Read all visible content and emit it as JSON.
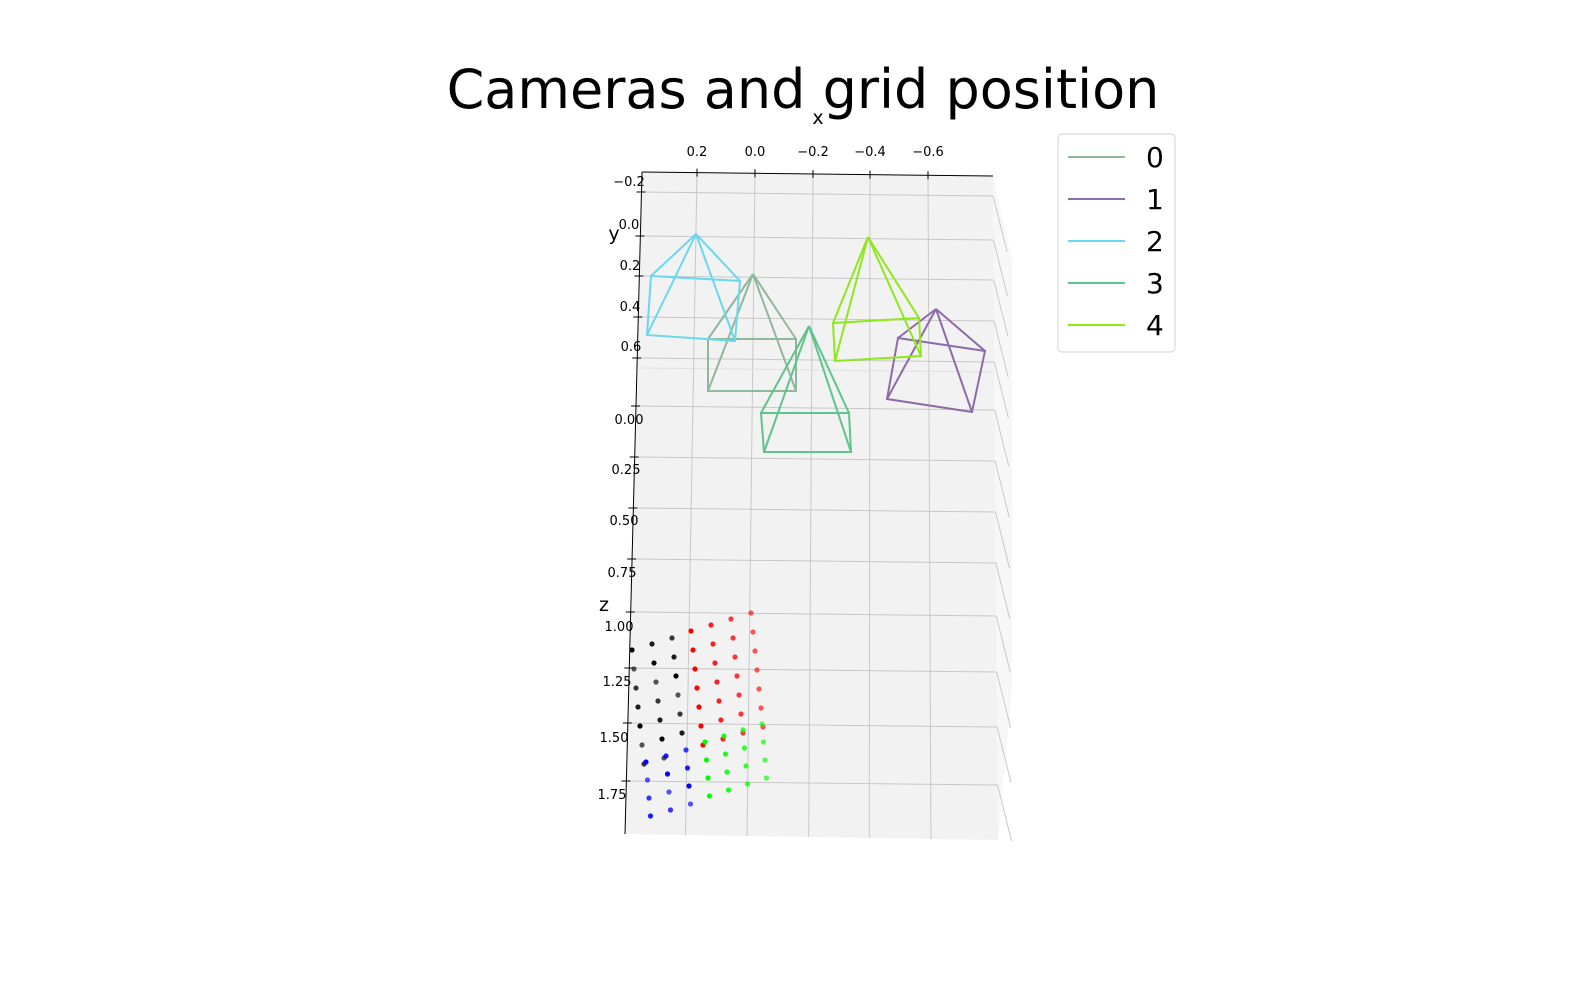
{
  "chart_data": {
    "type": "scatter",
    "projection": "3d",
    "title": "Cameras and grid position",
    "xlabel": "x",
    "ylabel": "y",
    "zlabel": "z",
    "x_ticks": [
      "0.2",
      "0.0",
      "−0.2",
      "−0.4",
      "−0.6"
    ],
    "y_ticks": [
      "−0.2",
      "0.0",
      "0.2",
      "0.4",
      "0.6"
    ],
    "z_ticks": [
      "0.00",
      "0.25",
      "0.50",
      "0.75",
      "1.00",
      "1.25",
      "1.50",
      "1.75"
    ],
    "grid": true,
    "legend_position": "top-right",
    "legend": [
      {
        "label": "0",
        "color": "#8fb89a"
      },
      {
        "label": "1",
        "color": "#8f6aa8"
      },
      {
        "label": "2",
        "color": "#6ad8ec"
      },
      {
        "label": "3",
        "color": "#5ec48a"
      },
      {
        "label": "4",
        "color": "#8ee81c"
      }
    ],
    "grid_point_groups": [
      {
        "color": "#000000",
        "count": 20
      },
      {
        "color": "#ff0000",
        "count": 28
      },
      {
        "color": "#0000ff",
        "count": 12
      },
      {
        "color": "#00ff00",
        "count": 20
      }
    ]
  }
}
